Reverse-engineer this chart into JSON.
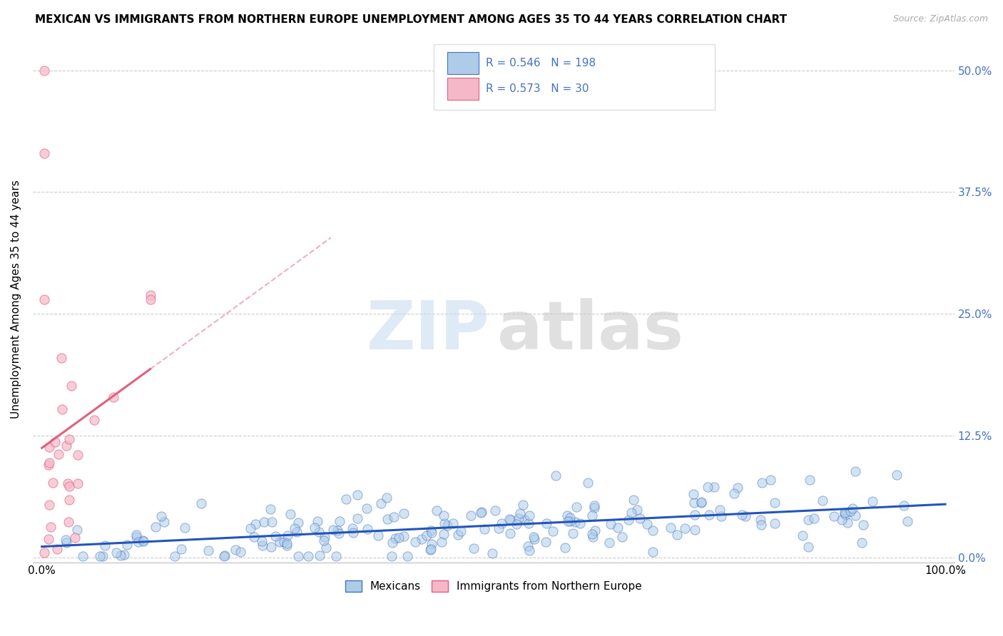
{
  "title": "MEXICAN VS IMMIGRANTS FROM NORTHERN EUROPE UNEMPLOYMENT AMONG AGES 35 TO 44 YEARS CORRELATION CHART",
  "source": "Source: ZipAtlas.com",
  "ylabel": "Unemployment Among Ages 35 to 44 years",
  "R_blue": 0.546,
  "N_blue": 198,
  "R_pink": 0.573,
  "N_pink": 30,
  "blue_face": "#aecce8",
  "blue_edge": "#4472c4",
  "pink_face": "#f5b8c8",
  "pink_edge": "#e06080",
  "blue_line": "#2255bb",
  "pink_line": "#e06080",
  "grid_color": "#cccccc",
  "right_tick_color": "#4472c4",
  "legend_text_color": "#4472c4",
  "legend_blue": "Mexicans",
  "legend_pink": "Immigrants from Northern Europe",
  "bg_color": "#ffffff",
  "title_fontsize": 11,
  "source_fontsize": 9,
  "tick_fontsize": 11,
  "ylabel_fontsize": 11,
  "legend_fontsize": 11,
  "stat_fontsize": 11,
  "xlim": [
    -0.01,
    1.01
  ],
  "ylim": [
    -0.005,
    0.535
  ],
  "y_ticks": [
    0.0,
    0.125,
    0.25,
    0.375,
    0.5
  ],
  "y_tick_labels": [
    "0.0%",
    "12.5%",
    "25.0%",
    "37.5%",
    "50.0%"
  ],
  "x_ticks": [
    0.0,
    0.125,
    0.25,
    0.375,
    0.5,
    0.625,
    0.75,
    0.875,
    1.0
  ],
  "watermark_zip_color": "#c8dcf0",
  "watermark_atlas_color": "#c8c8c8"
}
